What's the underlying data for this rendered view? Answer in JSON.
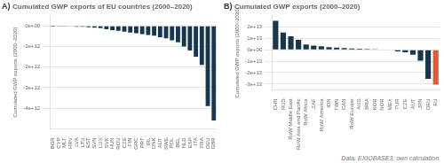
{
  "chart_data": [
    {
      "type": "bar",
      "title": "Cumulated GWP exports of EU countries (2000–2020)",
      "ylabel": "Cumulated GWP exports (2000–2020)",
      "annotations": [
        "A)"
      ],
      "categories": [
        "BGR",
        "CYP",
        "MLT",
        "HRV",
        "LVA",
        "LTU",
        "EST",
        "SVN",
        "LUX",
        "SVK",
        "HUN",
        "ROU",
        "CZE",
        "FIN",
        "GRC",
        "PRT",
        "IRL",
        "DNK",
        "AUT",
        "SWE",
        "POL",
        "BEL",
        "NLD",
        "ESP",
        "ITA",
        "FRA",
        "DEU",
        "GBR"
      ],
      "values": [
        -5000000000.0,
        -8000000000.0,
        -12000000000.0,
        -20000000000.0,
        -40000000000.0,
        -50000000000.0,
        -70000000000.0,
        -90000000000.0,
        -110000000000.0,
        -160000000000.0,
        -210000000000.0,
        -240000000000.0,
        -280000000000.0,
        -320000000000.0,
        -360000000000.0,
        -400000000000.0,
        -440000000000.0,
        -480000000000.0,
        -550000000000.0,
        -600000000000.0,
        -700000000000.0,
        -800000000000.0,
        -1000000000000.0,
        -1200000000000.0,
        -1500000000000.0,
        -1900000000000.0,
        -3900000000000.0,
        -4600000000000.0
      ],
      "color": "#17374f",
      "ylim": [
        -5000000000000.0,
        500000000000.0
      ],
      "yticks": [
        {
          "value": 0,
          "label": "0e+00"
        },
        {
          "value": -1000000000000.0,
          "label": "-1e+12"
        },
        {
          "value": -2000000000000.0,
          "label": "-2e+12"
        },
        {
          "value": -3000000000000.0,
          "label": "-3e+12"
        },
        {
          "value": -4000000000000.0,
          "label": "-4e+12"
        }
      ],
      "grid": true
    },
    {
      "type": "bar",
      "title": "Cumulated GWP exports (2000–2020)",
      "ylabel": "Cumulated GWP exports (2000–2020)",
      "annotations": [
        "B)",
        "Data: EXIOBASE3; own calculation."
      ],
      "categories": [
        "CHN",
        "RUS",
        "RoW Middle East",
        "RoW Asia and Pacific",
        "RoW Africa",
        "ZAF",
        "RoW America",
        "IDN",
        "TWN",
        "CAN",
        "RoW Europe",
        "AUS",
        "BRA",
        "KOR",
        "NOR",
        "MEX",
        "TUR",
        "CZE",
        "AUT",
        "JPN",
        "DEU",
        "EU"
      ],
      "values": [
        25500000000000.0,
        15200000000000.0,
        11800000000000.0,
        8800000000000.0,
        4600000000000.0,
        3600000000000.0,
        3000000000000.0,
        2300000000000.0,
        1900000000000.0,
        1600000000000.0,
        1100000000000.0,
        900000000000.0,
        700000000000.0,
        500000000000.0,
        300000000000.0,
        -400000000000.0,
        -1300000000000.0,
        -2200000000000.0,
        -4200000000000.0,
        -9500000000000.0,
        -25500000000000.0,
        -30500000000000.0
      ],
      "colors": [
        "#17374f",
        "#17374f",
        "#17374f",
        "#17374f",
        "#17374f",
        "#17374f",
        "#17374f",
        "#17374f",
        "#17374f",
        "#17374f",
        "#17374f",
        "#17374f",
        "#17374f",
        "#17374f",
        "#17374f",
        "#17374f",
        "#17374f",
        "#17374f",
        "#17374f",
        "#17374f",
        "#17374f",
        "#e05a3a"
      ],
      "ylim": [
        -35000000000000.0,
        30000000000000.0
      ],
      "yticks": [
        {
          "value": -30000000000000.0,
          "label": "-3e+13"
        },
        {
          "value": -20000000000000.0,
          "label": "-2e+13"
        },
        {
          "value": -10000000000000.0,
          "label": "-1e+13"
        },
        {
          "value": 0,
          "label": "0e+00"
        },
        {
          "value": 10000000000000.0,
          "label": "1e+13"
        },
        {
          "value": 20000000000000.0,
          "label": "2e+13"
        }
      ],
      "grid": true
    }
  ]
}
